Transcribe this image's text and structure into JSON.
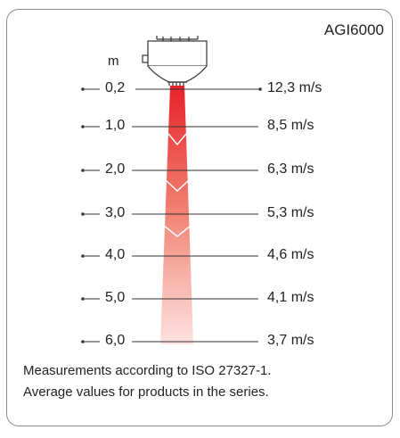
{
  "model": "AGI6000",
  "distance_unit": "m",
  "rows": [
    {
      "distance": "0,2",
      "speed": "12,3 m/s"
    },
    {
      "distance": "1,0",
      "speed": "8,5 m/s"
    },
    {
      "distance": "2,0",
      "speed": "6,3 m/s"
    },
    {
      "distance": "3,0",
      "speed": "5,3 m/s"
    },
    {
      "distance": "4,0",
      "speed": "4,6 m/s"
    },
    {
      "distance": "5,0",
      "speed": "4,1 m/s"
    },
    {
      "distance": "6,0",
      "speed": "3,7 m/s"
    }
  ],
  "footnote": [
    "Measurements according to ISO 27327-1.",
    "Average values for products in the series."
  ],
  "colors": {
    "beam_top": "#e8232b",
    "beam_bottom": "#fde3e0",
    "border": "#8a8a8a",
    "lines": "#333333"
  }
}
